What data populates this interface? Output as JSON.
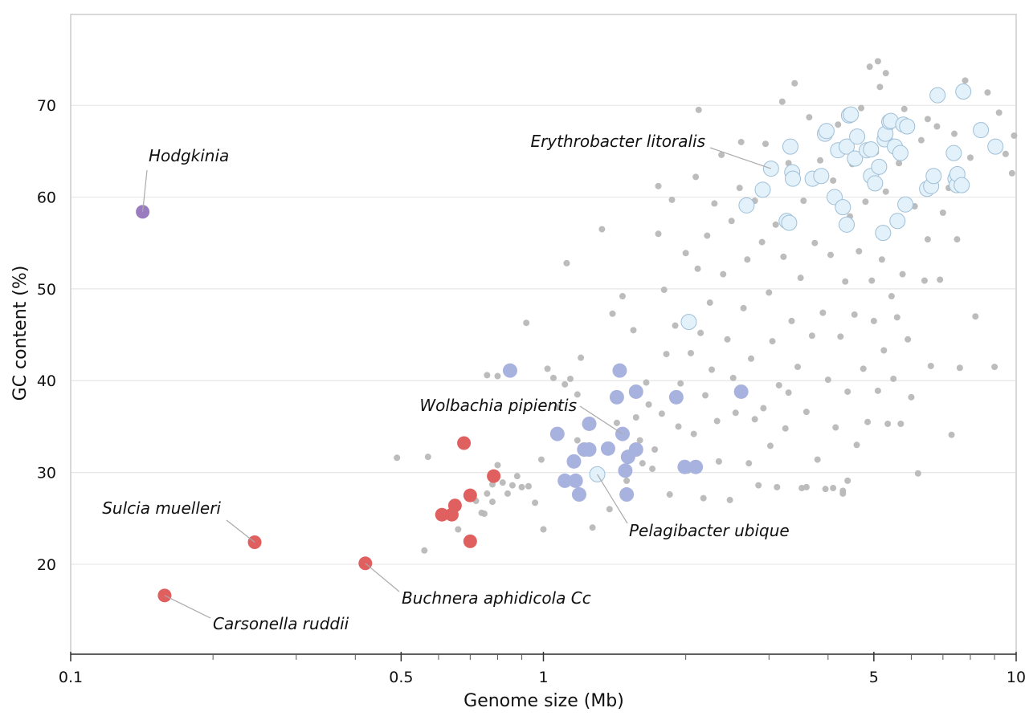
{
  "chart_data": {
    "type": "scatter",
    "title": "",
    "xlabel": "Genome size (Mb)",
    "ylabel": "GC content (%)",
    "x_scale": "log",
    "xlim": [
      0.1,
      10
    ],
    "ylim": [
      10.2,
      79.9
    ],
    "x_ticks": [
      0.1,
      0.5,
      1,
      5,
      10
    ],
    "x_tick_labels": [
      "0.1",
      "0.5",
      "1",
      "5",
      "10"
    ],
    "x_minor_ticks": [
      0.2,
      0.3,
      0.4,
      0.6,
      0.7,
      0.8,
      0.9,
      2,
      3,
      4,
      6,
      7,
      8,
      9
    ],
    "y_ticks": [
      20,
      30,
      40,
      50,
      60,
      70
    ],
    "y_tick_labels": [
      "20",
      "30",
      "40",
      "50",
      "60",
      "70"
    ],
    "grid": "horizontal",
    "colors": {
      "gray": "#b8b8b8",
      "red": "#e0605f",
      "lavender": "#a8b2de",
      "pale": "#e3f1fb",
      "pale_stroke": "#9fbfd6",
      "purple": "#9a7bc0",
      "leader": "#aaaaaa"
    },
    "series": [
      {
        "group": "gray",
        "points": [
          [
            0.49,
            31.6
          ],
          [
            0.57,
            31.7
          ],
          [
            0.56,
            21.5
          ],
          [
            0.66,
            23.8
          ],
          [
            0.72,
            26.9
          ],
          [
            0.74,
            25.6
          ],
          [
            0.75,
            25.5
          ],
          [
            0.76,
            27.7
          ],
          [
            0.78,
            28.7
          ],
          [
            0.78,
            26.8
          ],
          [
            0.8,
            30.8
          ],
          [
            0.82,
            28.9
          ],
          [
            0.84,
            27.7
          ],
          [
            0.86,
            28.6
          ],
          [
            0.88,
            29.6
          ],
          [
            0.9,
            28.4
          ],
          [
            0.93,
            28.5
          ],
          [
            0.96,
            26.7
          ],
          [
            0.99,
            31.4
          ],
          [
            1.0,
            23.8
          ],
          [
            1.05,
            40.3
          ],
          [
            1.02,
            41.3
          ],
          [
            0.92,
            46.3
          ],
          [
            0.76,
            40.6
          ],
          [
            0.8,
            40.5
          ],
          [
            1.12,
            52.8
          ],
          [
            1.07,
            37.1
          ],
          [
            1.11,
            39.6
          ],
          [
            1.14,
            40.2
          ],
          [
            1.18,
            38.5
          ],
          [
            1.2,
            42.5
          ],
          [
            1.27,
            24.0
          ],
          [
            1.18,
            33.5
          ],
          [
            1.33,
            56.5
          ],
          [
            1.38,
            26.0
          ],
          [
            1.4,
            47.3
          ],
          [
            1.43,
            35.4
          ],
          [
            1.47,
            49.2
          ],
          [
            1.5,
            29.1
          ],
          [
            1.55,
            45.5
          ],
          [
            1.57,
            36.0
          ],
          [
            1.6,
            33.5
          ],
          [
            1.62,
            31.0
          ],
          [
            1.65,
            39.8
          ],
          [
            1.67,
            37.4
          ],
          [
            1.7,
            30.4
          ],
          [
            1.72,
            32.5
          ],
          [
            1.75,
            61.2
          ],
          [
            1.75,
            56.0
          ],
          [
            1.78,
            36.4
          ],
          [
            1.8,
            49.9
          ],
          [
            1.82,
            42.9
          ],
          [
            1.85,
            27.6
          ],
          [
            1.87,
            59.7
          ],
          [
            1.9,
            46.0
          ],
          [
            1.93,
            35.0
          ],
          [
            1.95,
            39.7
          ],
          [
            2.0,
            53.9
          ],
          [
            2.02,
            30.2
          ],
          [
            2.05,
            43.0
          ],
          [
            2.08,
            34.2
          ],
          [
            2.1,
            62.2
          ],
          [
            2.12,
            52.2
          ],
          [
            2.13,
            69.5
          ],
          [
            2.15,
            45.2
          ],
          [
            2.18,
            27.2
          ],
          [
            2.2,
            38.4
          ],
          [
            2.22,
            55.8
          ],
          [
            2.25,
            48.5
          ],
          [
            2.27,
            41.2
          ],
          [
            2.3,
            59.3
          ],
          [
            2.33,
            35.6
          ],
          [
            2.35,
            31.2
          ],
          [
            2.38,
            64.6
          ],
          [
            2.4,
            51.6
          ],
          [
            2.45,
            44.5
          ],
          [
            2.48,
            27.0
          ],
          [
            2.5,
            57.4
          ],
          [
            2.52,
            40.3
          ],
          [
            2.55,
            36.5
          ],
          [
            2.6,
            61.0
          ],
          [
            2.62,
            66.0
          ],
          [
            2.65,
            47.9
          ],
          [
            2.7,
            53.2
          ],
          [
            2.72,
            31.0
          ],
          [
            2.75,
            42.4
          ],
          [
            2.8,
            59.6
          ],
          [
            2.85,
            28.6
          ],
          [
            2.9,
            55.1
          ],
          [
            2.92,
            37.0
          ],
          [
            2.95,
            65.8
          ],
          [
            3.0,
            49.6
          ],
          [
            3.02,
            32.9
          ],
          [
            3.05,
            44.3
          ],
          [
            3.1,
            57.0
          ],
          [
            3.12,
            28.4
          ],
          [
            3.15,
            39.5
          ],
          [
            3.2,
            70.4
          ],
          [
            3.22,
            53.5
          ],
          [
            3.25,
            34.8
          ],
          [
            3.3,
            63.7
          ],
          [
            3.35,
            46.5
          ],
          [
            3.4,
            72.4
          ],
          [
            3.45,
            41.5
          ],
          [
            3.5,
            51.2
          ],
          [
            3.52,
            28.3
          ],
          [
            3.55,
            59.6
          ],
          [
            3.6,
            36.6
          ],
          [
            3.65,
            68.7
          ],
          [
            3.7,
            44.9
          ],
          [
            3.75,
            55.0
          ],
          [
            3.8,
            31.4
          ],
          [
            3.85,
            64.0
          ],
          [
            3.9,
            47.4
          ],
          [
            3.95,
            28.2
          ],
          [
            4.0,
            40.1
          ],
          [
            4.05,
            53.7
          ],
          [
            4.1,
            61.8
          ],
          [
            4.15,
            34.9
          ],
          [
            4.2,
            67.9
          ],
          [
            4.25,
            44.8
          ],
          [
            4.3,
            28.0
          ],
          [
            4.35,
            50.8
          ],
          [
            4.4,
            38.8
          ],
          [
            4.45,
            57.9
          ],
          [
            4.5,
            63.6
          ],
          [
            4.55,
            47.2
          ],
          [
            4.6,
            33.0
          ],
          [
            4.65,
            54.1
          ],
          [
            4.7,
            69.7
          ],
          [
            4.75,
            41.3
          ],
          [
            4.8,
            59.5
          ],
          [
            4.85,
            35.5
          ],
          [
            4.9,
            74.2
          ],
          [
            4.95,
            50.9
          ],
          [
            5.0,
            46.5
          ],
          [
            5.05,
            64.9
          ],
          [
            5.1,
            38.9
          ],
          [
            5.15,
            72.0
          ],
          [
            5.2,
            53.2
          ],
          [
            5.25,
            43.3
          ],
          [
            5.3,
            60.6
          ],
          [
            5.35,
            35.3
          ],
          [
            5.4,
            67.4
          ],
          [
            5.45,
            49.2
          ],
          [
            5.5,
            40.2
          ],
          [
            5.55,
            57.4
          ],
          [
            5.6,
            46.9
          ],
          [
            5.65,
            63.7
          ],
          [
            5.7,
            35.3
          ],
          [
            5.75,
            51.6
          ],
          [
            5.8,
            69.6
          ],
          [
            5.9,
            44.5
          ],
          [
            6.0,
            38.2
          ],
          [
            6.1,
            59.0
          ],
          [
            6.2,
            29.9
          ],
          [
            6.3,
            66.2
          ],
          [
            6.4,
            50.9
          ],
          [
            6.5,
            55.4
          ],
          [
            6.6,
            41.6
          ],
          [
            6.7,
            62.4
          ],
          [
            6.8,
            67.7
          ],
          [
            6.9,
            51.0
          ],
          [
            7.0,
            58.3
          ],
          [
            7.2,
            61.0
          ],
          [
            7.3,
            34.1
          ],
          [
            7.4,
            66.9
          ],
          [
            7.5,
            55.4
          ],
          [
            7.6,
            41.4
          ],
          [
            7.8,
            72.7
          ],
          [
            8.0,
            64.3
          ],
          [
            8.2,
            47.0
          ],
          [
            8.5,
            67.8
          ],
          [
            8.7,
            71.4
          ],
          [
            9.0,
            41.5
          ],
          [
            9.2,
            69.2
          ],
          [
            9.5,
            64.7
          ],
          [
            9.8,
            62.6
          ],
          [
            9.9,
            66.7
          ],
          [
            3.6,
            28.4
          ],
          [
            4.1,
            28.3
          ],
          [
            4.4,
            29.1
          ],
          [
            4.3,
            27.7
          ],
          [
            2.8,
            35.8
          ],
          [
            3.3,
            38.7
          ],
          [
            5.1,
            74.8
          ],
          [
            5.3,
            73.5
          ],
          [
            6.5,
            68.5
          ]
        ]
      },
      {
        "group": "lavender",
        "points": [
          [
            0.85,
            41.1
          ],
          [
            1.45,
            41.1
          ],
          [
            1.43,
            38.2
          ],
          [
            1.57,
            38.8
          ],
          [
            1.91,
            38.2
          ],
          [
            2.62,
            38.8
          ],
          [
            1.07,
            34.2
          ],
          [
            1.25,
            35.3
          ],
          [
            1.47,
            34.2
          ],
          [
            1.16,
            31.2
          ],
          [
            1.22,
            32.5
          ],
          [
            1.25,
            32.5
          ],
          [
            1.37,
            32.6
          ],
          [
            1.51,
            31.7
          ],
          [
            1.57,
            32.5
          ],
          [
            1.11,
            29.1
          ],
          [
            1.17,
            29.1
          ],
          [
            1.19,
            27.6
          ],
          [
            1.49,
            30.2
          ],
          [
            1.5,
            27.6
          ],
          [
            1.99,
            30.6
          ],
          [
            2.1,
            30.6
          ]
        ]
      },
      {
        "group": "pale",
        "points": [
          [
            1.3,
            29.8
          ],
          [
            2.03,
            46.4
          ],
          [
            3.03,
            63.1
          ],
          [
            2.91,
            60.8
          ],
          [
            2.69,
            59.1
          ],
          [
            3.33,
            65.5
          ],
          [
            3.36,
            62.7
          ],
          [
            3.37,
            62.0
          ],
          [
            3.71,
            62.0
          ],
          [
            3.27,
            57.4
          ],
          [
            3.31,
            57.2
          ],
          [
            3.87,
            62.3
          ],
          [
            3.94,
            66.9
          ],
          [
            3.97,
            67.2
          ],
          [
            4.13,
            60.0
          ],
          [
            4.2,
            65.1
          ],
          [
            4.3,
            58.9
          ],
          [
            4.38,
            65.5
          ],
          [
            4.38,
            57.0
          ],
          [
            4.43,
            68.9
          ],
          [
            4.47,
            69.0
          ],
          [
            4.56,
            64.2
          ],
          [
            4.61,
            66.6
          ],
          [
            4.83,
            65.1
          ],
          [
            4.93,
            65.2
          ],
          [
            4.93,
            62.3
          ],
          [
            5.03,
            61.5
          ],
          [
            5.13,
            63.3
          ],
          [
            5.23,
            56.1
          ],
          [
            5.27,
            66.3
          ],
          [
            5.29,
            66.9
          ],
          [
            5.39,
            68.2
          ],
          [
            5.43,
            68.3
          ],
          [
            5.54,
            65.5
          ],
          [
            5.61,
            57.4
          ],
          [
            5.69,
            64.8
          ],
          [
            5.77,
            67.9
          ],
          [
            5.83,
            59.2
          ],
          [
            5.88,
            67.7
          ],
          [
            6.48,
            60.9
          ],
          [
            6.61,
            61.2
          ],
          [
            6.69,
            62.3
          ],
          [
            6.82,
            71.1
          ],
          [
            7.38,
            64.8
          ],
          [
            7.44,
            62.0
          ],
          [
            7.49,
            61.3
          ],
          [
            7.51,
            62.5
          ],
          [
            7.67,
            61.3
          ],
          [
            7.73,
            71.5
          ],
          [
            8.42,
            67.3
          ],
          [
            9.04,
            65.5
          ]
        ]
      },
      {
        "group": "red",
        "points": [
          [
            0.158,
            16.6
          ],
          [
            0.245,
            22.4
          ],
          [
            0.42,
            20.1
          ],
          [
            0.679,
            33.2
          ],
          [
            0.785,
            29.6
          ],
          [
            0.7,
            27.5
          ],
          [
            0.65,
            26.4
          ],
          [
            0.61,
            25.4
          ],
          [
            0.64,
            25.4
          ],
          [
            0.7,
            22.5
          ]
        ]
      },
      {
        "group": "purple",
        "points": [
          [
            0.142,
            58.4
          ]
        ]
      }
    ],
    "annotations": [
      {
        "label": "Hodgkinia",
        "x": 0.142,
        "y": 58.4
      },
      {
        "label": "Sulcia muelleri",
        "x": 0.245,
        "y": 22.4
      },
      {
        "label": "Carsonella ruddii",
        "x": 0.158,
        "y": 16.6
      },
      {
        "label": "Buchnera aphidicola Cc",
        "x": 0.42,
        "y": 20.1
      },
      {
        "label": "Pelagibacter ubique",
        "x": 1.3,
        "y": 29.8
      },
      {
        "label": "Wolbachia pipientis",
        "x": 1.47,
        "y": 34.2
      },
      {
        "label": "Erythrobacter litoralis",
        "x": 3.03,
        "y": 63.1
      }
    ]
  }
}
